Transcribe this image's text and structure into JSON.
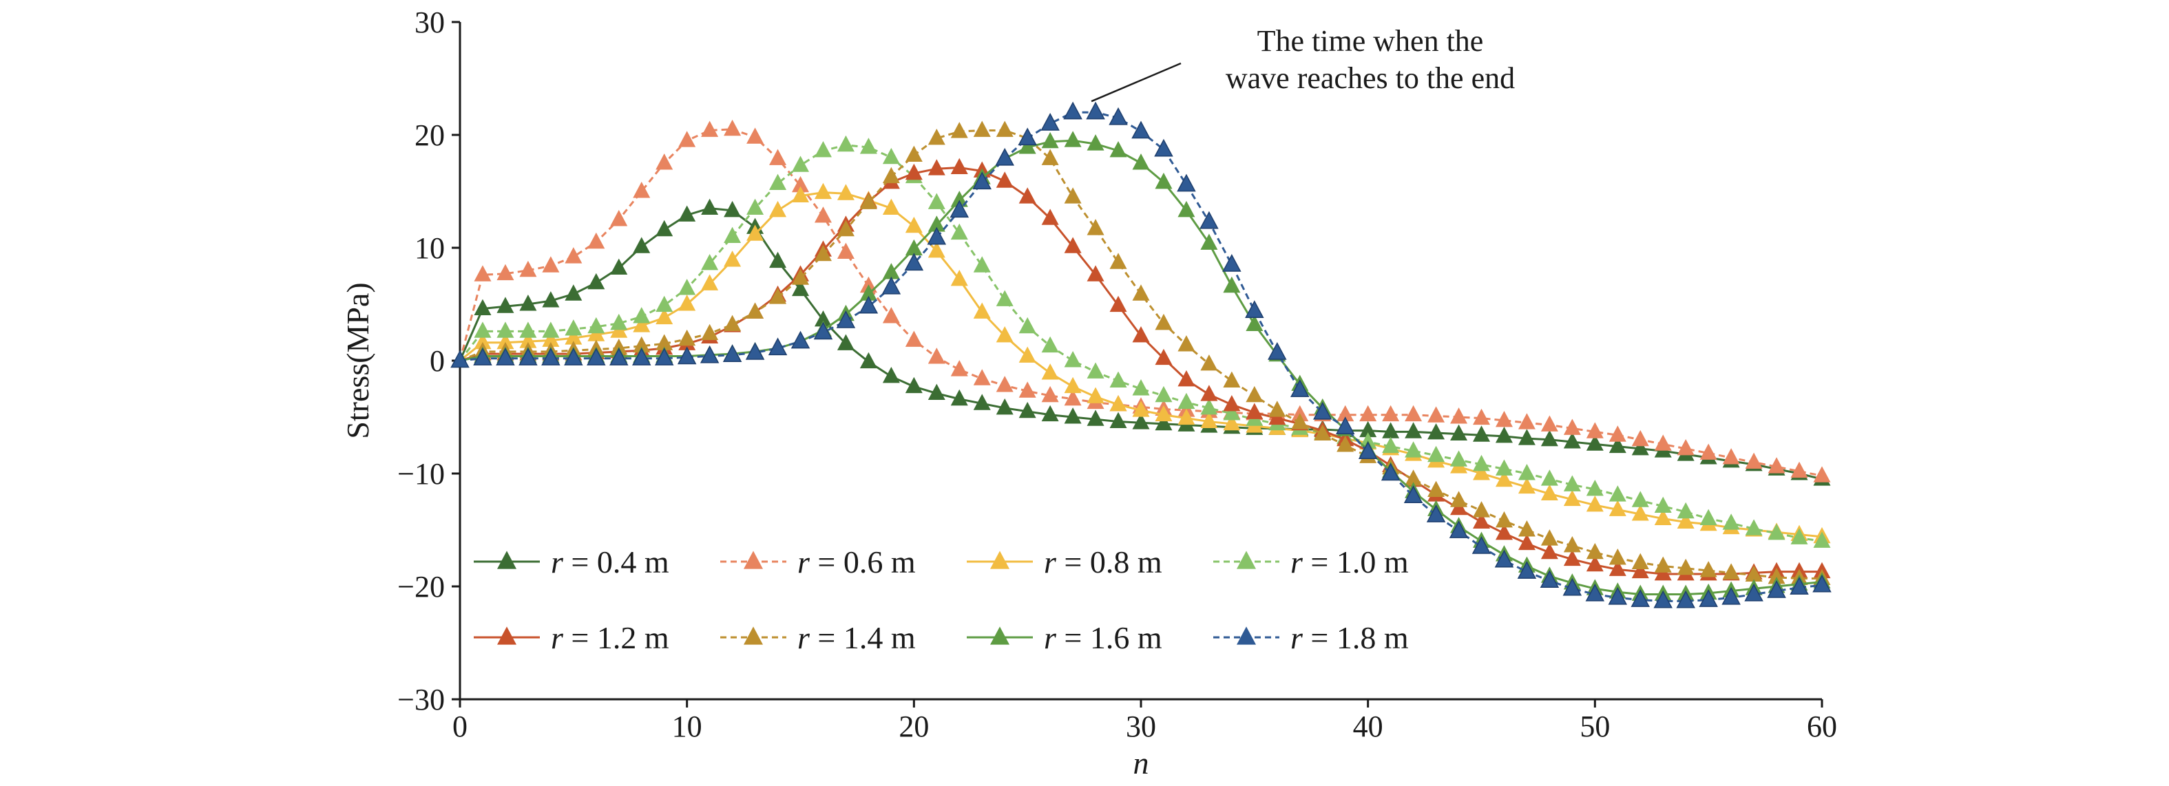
{
  "chart_data": {
    "type": "line",
    "title": "",
    "xlabel": "n",
    "ylabel": "Stress(MPa)",
    "xlim": [
      0,
      60
    ],
    "ylim": [
      -30,
      30
    ],
    "xticks": [
      "0",
      "10",
      "20",
      "30",
      "40",
      "50",
      "60"
    ],
    "yticks": [
      "30",
      "20",
      "10",
      "0",
      "−10",
      "−20",
      "−30"
    ],
    "grid": false,
    "legend_position": "bottom-left, inside plot",
    "x": [
      0,
      1,
      2,
      3,
      4,
      5,
      6,
      7,
      8,
      9,
      10,
      11,
      12,
      13,
      14,
      15,
      16,
      17,
      18,
      19,
      20,
      21,
      22,
      23,
      24,
      25,
      26,
      27,
      28,
      29,
      30,
      31,
      32,
      33,
      34,
      35,
      36,
      37,
      38,
      39,
      40,
      41,
      42,
      43,
      44,
      45,
      46,
      47,
      48,
      49,
      50,
      51,
      52,
      53,
      54,
      55,
      56,
      57,
      58,
      59,
      60
    ],
    "series": [
      {
        "name": "r = 0.4 m",
        "color": "#3b6d33",
        "dashed": false,
        "values": [
          0,
          4.6,
          4.8,
          5,
          5.3,
          5.9,
          6.9,
          8.2,
          10.1,
          11.6,
          12.9,
          13.5,
          13.3,
          11.8,
          8.8,
          6.3,
          3.6,
          1.5,
          -0.1,
          -1.4,
          -2.3,
          -2.9,
          -3.4,
          -3.8,
          -4.2,
          -4.5,
          -4.8,
          -5,
          -5.2,
          -5.4,
          -5.5,
          -5.6,
          -5.7,
          -5.8,
          -5.9,
          -6,
          -6,
          -6.1,
          -6.1,
          -6.2,
          -6.2,
          -6.3,
          -6.3,
          -6.4,
          -6.5,
          -6.6,
          -6.7,
          -6.9,
          -7,
          -7.2,
          -7.4,
          -7.6,
          -7.8,
          -8,
          -8.3,
          -8.6,
          -8.9,
          -9.2,
          -9.6,
          -10,
          -10.5
        ]
      },
      {
        "name": "r = 0.6 m",
        "color": "#e8845f",
        "dashed": true,
        "values": [
          0,
          7.6,
          7.7,
          8,
          8.4,
          9.2,
          10.5,
          12.5,
          15,
          17.5,
          19.5,
          20.4,
          20.5,
          19.8,
          17.9,
          15.5,
          12.8,
          9.6,
          6.6,
          3.9,
          1.8,
          0.3,
          -0.8,
          -1.6,
          -2.2,
          -2.7,
          -3.1,
          -3.4,
          -3.7,
          -3.9,
          -4.1,
          -4.3,
          -4.4,
          -4.5,
          -4.6,
          -4.7,
          -4.7,
          -4.8,
          -4.8,
          -4.8,
          -4.8,
          -4.8,
          -4.8,
          -4.9,
          -5,
          -5.1,
          -5.3,
          -5.5,
          -5.7,
          -6,
          -6.3,
          -6.6,
          -7,
          -7.4,
          -7.8,
          -8.2,
          -8.6,
          -9,
          -9.4,
          -9.8,
          -10.2
        ]
      },
      {
        "name": "r = 0.8 m",
        "color": "#f2bc41",
        "dashed": false,
        "values": [
          0,
          1.6,
          1.6,
          1.7,
          1.8,
          2,
          2.3,
          2.6,
          3.1,
          3.8,
          5,
          6.8,
          8.9,
          11.2,
          13.3,
          14.6,
          14.9,
          14.8,
          14.2,
          13.5,
          11.9,
          9.7,
          7.2,
          4.3,
          2.2,
          0.4,
          -1.1,
          -2.3,
          -3.2,
          -3.9,
          -4.4,
          -4.8,
          -5.1,
          -5.4,
          -5.6,
          -5.8,
          -6,
          -6.2,
          -6.5,
          -6.9,
          -7.3,
          -7.8,
          -8.3,
          -8.9,
          -9.4,
          -10,
          -10.6,
          -11.2,
          -11.8,
          -12.3,
          -12.8,
          -13.2,
          -13.6,
          -14,
          -14.3,
          -14.5,
          -14.8,
          -15,
          -15.2,
          -15.4,
          -15.6
        ]
      },
      {
        "name": "r = 1.0 m",
        "color": "#87c368",
        "dashed": true,
        "values": [
          0,
          2.6,
          2.6,
          2.6,
          2.6,
          2.8,
          3,
          3.3,
          3.9,
          4.9,
          6.4,
          8.6,
          11,
          13.5,
          15.7,
          17.3,
          18.6,
          19.1,
          18.9,
          18,
          16.3,
          14,
          11.3,
          8.4,
          5.4,
          3,
          1.3,
          0,
          -1,
          -1.8,
          -2.5,
          -3.1,
          -3.7,
          -4.2,
          -4.7,
          -5.2,
          -5.6,
          -6,
          -6.4,
          -6.8,
          -7.2,
          -7.6,
          -8,
          -8.4,
          -8.8,
          -9.2,
          -9.6,
          -10,
          -10.5,
          -11,
          -11.4,
          -11.9,
          -12.4,
          -12.9,
          -13.4,
          -14,
          -14.4,
          -14.9,
          -15.3,
          -15.7,
          -16
        ]
      },
      {
        "name": "r = 1.2 m",
        "color": "#c8522b",
        "dashed": false,
        "values": [
          0,
          0.6,
          0.6,
          0.6,
          0.6,
          0.6,
          0.7,
          0.8,
          0.9,
          1.1,
          1.5,
          2.1,
          3.1,
          4.3,
          5.8,
          7.6,
          9.8,
          12,
          14.1,
          15.8,
          16.6,
          17,
          17.1,
          16.8,
          15.9,
          14.5,
          12.6,
          10.1,
          7.6,
          4.9,
          2.2,
          0.2,
          -1.7,
          -3,
          -3.9,
          -4.6,
          -5.1,
          -5.6,
          -6.2,
          -7,
          -8,
          -9.3,
          -10.6,
          -11.9,
          -13.1,
          -14.3,
          -15.3,
          -16.2,
          -17,
          -17.6,
          -18.1,
          -18.5,
          -18.7,
          -18.9,
          -18.9,
          -18.9,
          -18.9,
          -18.8,
          -18.7,
          -18.7,
          -18.7
        ]
      },
      {
        "name": "r = 1.4 m",
        "color": "#bd8f2e",
        "dashed": true,
        "values": [
          0,
          0.8,
          0.8,
          0.8,
          0.8,
          0.9,
          1,
          1.1,
          1.3,
          1.5,
          1.9,
          2.4,
          3.2,
          4.3,
          5.6,
          7.3,
          9.4,
          11.6,
          14,
          16.3,
          18.2,
          19.7,
          20.3,
          20.4,
          20.4,
          19.7,
          17.9,
          14.5,
          11.7,
          8.7,
          5.9,
          3.3,
          1.4,
          -0.3,
          -1.8,
          -3.1,
          -4.4,
          -5.5,
          -6.5,
          -7.5,
          -8.5,
          -9.5,
          -10.5,
          -11.5,
          -12.4,
          -13.3,
          -14.2,
          -15,
          -15.8,
          -16.4,
          -17,
          -17.5,
          -17.9,
          -18.2,
          -18.4,
          -18.6,
          -18.8,
          -19,
          -19.2,
          -19.3,
          -19.3
        ]
      },
      {
        "name": "r = 1.6 m",
        "color": "#5e9c43",
        "dashed": false,
        "values": [
          0,
          0.4,
          0.4,
          0.4,
          0.4,
          0.4,
          0.4,
          0.4,
          0.4,
          0.4,
          0.4,
          0.5,
          0.6,
          0.8,
          1.1,
          1.7,
          2.7,
          4.1,
          5.9,
          7.8,
          9.9,
          12,
          14.2,
          16.2,
          17.9,
          18.9,
          19.4,
          19.5,
          19.2,
          18.6,
          17.5,
          15.8,
          13.3,
          10.4,
          6.6,
          3.2,
          0.5,
          -2.1,
          -4.2,
          -6.1,
          -7.9,
          -9.8,
          -11.6,
          -13.2,
          -14.7,
          -16,
          -17.2,
          -18.2,
          -19.1,
          -19.7,
          -20.2,
          -20.5,
          -20.7,
          -20.7,
          -20.7,
          -20.6,
          -20.4,
          -20.2,
          -20,
          -19.8,
          -19.6
        ]
      },
      {
        "name": "r = 1.8 m",
        "color": "#2f5a94",
        "dashed": true,
        "values": [
          0,
          0.2,
          0.2,
          0.2,
          0.2,
          0.2,
          0.2,
          0.2,
          0.2,
          0.2,
          0.3,
          0.4,
          0.5,
          0.7,
          1.1,
          1.7,
          2.5,
          3.5,
          4.8,
          6.5,
          8.6,
          10.9,
          13.3,
          15.8,
          17.9,
          19.7,
          21,
          22,
          22,
          21.5,
          20.3,
          18.7,
          15.6,
          12.3,
          8.5,
          4.4,
          0.7,
          -2.6,
          -4.6,
          -5.9,
          -8.1,
          -10,
          -12,
          -13.7,
          -15.1,
          -16.5,
          -17.7,
          -18.7,
          -19.5,
          -20.2,
          -20.7,
          -21,
          -21.2,
          -21.3,
          -21.3,
          -21.2,
          -21,
          -20.7,
          -20.4,
          -20.1,
          -19.9
        ]
      }
    ],
    "annotation": {
      "lines": [
        "The time when the",
        "wave reaches to the end"
      ],
      "points_to": {
        "x": 28,
        "y": 22
      }
    }
  }
}
